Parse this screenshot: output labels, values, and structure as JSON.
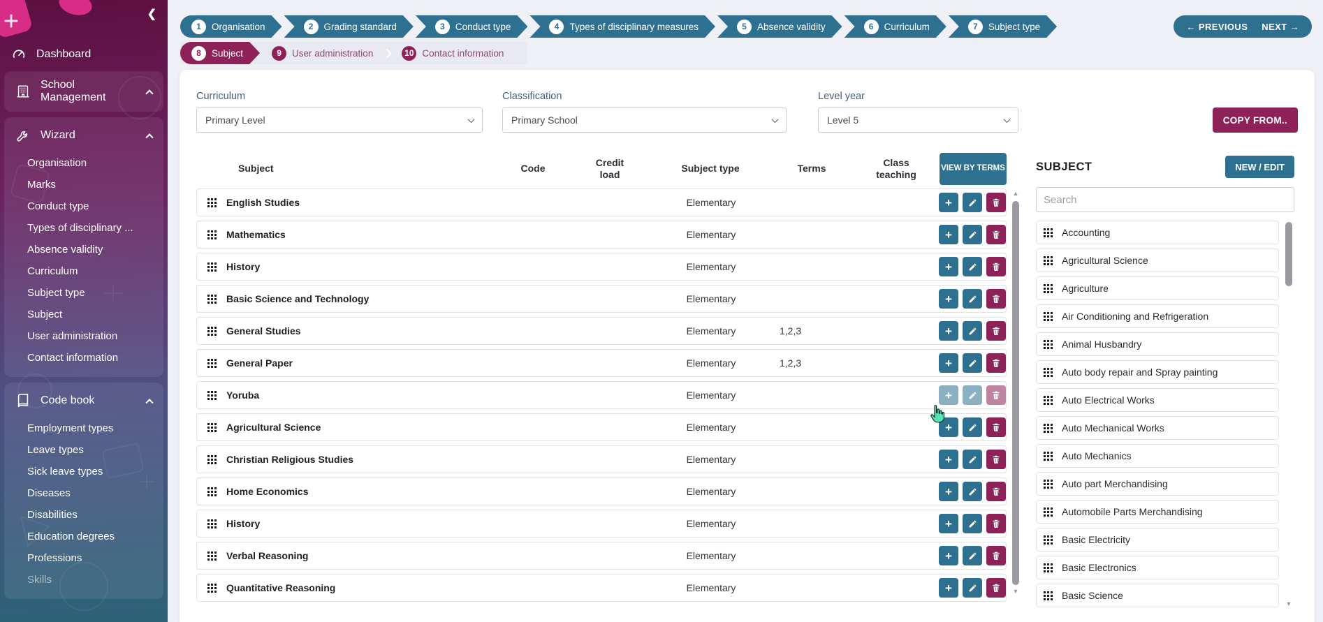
{
  "colors": {
    "accent_teal": "#2e7090",
    "accent_maroon": "#8e2158",
    "sidebar_top": "#5d0f41",
    "sidebar_bottom": "#2d6377",
    "page_bg": "#eef0f6"
  },
  "icons": {
    "add": "+",
    "prev_arrow": "←",
    "next_arrow": "→",
    "collapse": "❮",
    "scroll_up": "▲",
    "scroll_down": "▼"
  },
  "sidebar": {
    "dashboard": "Dashboard",
    "school_management": "School Management",
    "wizard": {
      "label": "Wizard",
      "items": [
        "Organisation",
        "Marks",
        "Conduct type",
        "Types of disciplinary ...",
        "Absence validity",
        "Curriculum",
        "Subject type",
        "Subject",
        "User administration",
        "Contact information"
      ]
    },
    "codebook": {
      "label": "Code book",
      "items": [
        "Employment types",
        "Leave types",
        "Sick leave types",
        "Diseases",
        "Disabilities",
        "Education degrees",
        "Professions",
        "Skills"
      ]
    }
  },
  "wizard_steps": {
    "row1": [
      {
        "num": "1",
        "label": "Organisation"
      },
      {
        "num": "2",
        "label": "Grading standard"
      },
      {
        "num": "3",
        "label": "Conduct type"
      },
      {
        "num": "4",
        "label": "Types of disciplinary measures"
      },
      {
        "num": "5",
        "label": "Absence validity"
      },
      {
        "num": "6",
        "label": "Curriculum"
      },
      {
        "num": "7",
        "label": "Subject type"
      }
    ],
    "row2": [
      {
        "num": "8",
        "label": "Subject",
        "active": true
      },
      {
        "num": "9",
        "label": "User administration"
      },
      {
        "num": "10",
        "label": "Contact information"
      }
    ]
  },
  "nav": {
    "previous": "PREVIOUS",
    "next": "NEXT"
  },
  "filters": {
    "curriculum": {
      "label": "Curriculum",
      "value": "Primary Level"
    },
    "classification": {
      "label": "Classification",
      "value": "Primary School"
    },
    "level_year": {
      "label": "Level year",
      "value": "Level 5"
    },
    "copy_from_label": "COPY FROM.."
  },
  "table": {
    "headers": {
      "subject": "Subject",
      "code": "Code",
      "credit_load": "Credit load",
      "subject_type": "Subject type",
      "terms": "Terms",
      "class_teaching": "Class teaching",
      "view_by_terms": "VIEW BY TERMS"
    },
    "rows": [
      {
        "subject": "English Studies",
        "code": "",
        "credit_load": "",
        "subject_type": "Elementary",
        "terms": "",
        "class_teaching": ""
      },
      {
        "subject": "Mathematics",
        "code": "",
        "credit_load": "",
        "subject_type": "Elementary",
        "terms": "",
        "class_teaching": ""
      },
      {
        "subject": "History",
        "code": "",
        "credit_load": "",
        "subject_type": "Elementary",
        "terms": "",
        "class_teaching": ""
      },
      {
        "subject": "Basic Science and Technology",
        "code": "",
        "credit_load": "",
        "subject_type": "Elementary",
        "terms": "",
        "class_teaching": ""
      },
      {
        "subject": "General Studies",
        "code": "",
        "credit_load": "",
        "subject_type": "Elementary",
        "terms": "1,2,3",
        "class_teaching": ""
      },
      {
        "subject": "General Paper",
        "code": "",
        "credit_load": "",
        "subject_type": "Elementary",
        "terms": "1,2,3",
        "class_teaching": ""
      },
      {
        "subject": "Yoruba",
        "code": "",
        "credit_load": "",
        "subject_type": "Elementary",
        "terms": "",
        "class_teaching": "",
        "hovered": true
      },
      {
        "subject": "Agricultural Science",
        "code": "",
        "credit_load": "",
        "subject_type": "Elementary",
        "terms": "",
        "class_teaching": ""
      },
      {
        "subject": "Christian Religious Studies",
        "code": "",
        "credit_load": "",
        "subject_type": "Elementary",
        "terms": "",
        "class_teaching": ""
      },
      {
        "subject": "Home Economics",
        "code": "",
        "credit_load": "",
        "subject_type": "Elementary",
        "terms": "",
        "class_teaching": ""
      },
      {
        "subject": "History",
        "code": "",
        "credit_load": "",
        "subject_type": "Elementary",
        "terms": "",
        "class_teaching": ""
      },
      {
        "subject": "Verbal Reasoning",
        "code": "",
        "credit_load": "",
        "subject_type": "Elementary",
        "terms": "",
        "class_teaching": ""
      },
      {
        "subject": "Quantitative Reasoning",
        "code": "",
        "credit_load": "",
        "subject_type": "Elementary",
        "terms": "",
        "class_teaching": ""
      }
    ]
  },
  "subject_panel": {
    "title": "SUBJECT",
    "new_edit_label": "NEW / EDIT",
    "search_placeholder": "Search",
    "items": [
      "Accounting",
      "Agricultural Science",
      "Agriculture",
      "Air Conditioning and Refrigeration",
      "Animal Husbandry",
      "Auto body repair and Spray painting",
      "Auto Electrical Works",
      "Auto Mechanical Works",
      "Auto Mechanics",
      "Auto part Merchandising",
      "Automobile Parts Merchandising",
      "Basic Electricity",
      "Basic Electronics",
      "Basic Science"
    ]
  }
}
